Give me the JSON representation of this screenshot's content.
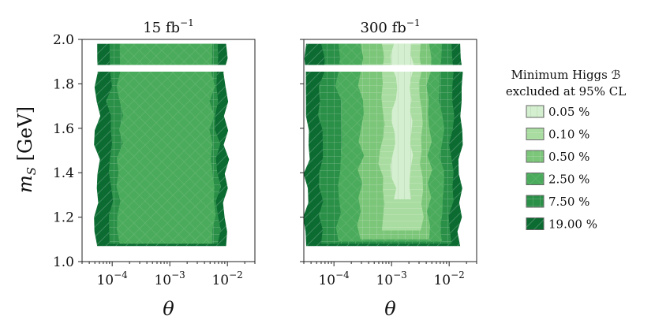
{
  "chart_data": {
    "type": "contour",
    "ylabel": "m_S [GeV]",
    "xlabel": "θ",
    "x_scale": "log",
    "xlim": [
      3e-05,
      0.03
    ],
    "ylim": [
      1.0,
      2.0
    ],
    "x_ticks": [
      {
        "value": 0.0001,
        "base": "10",
        "exp": "−4"
      },
      {
        "value": 0.001,
        "base": "10",
        "exp": "−3"
      },
      {
        "value": 0.01,
        "base": "10",
        "exp": "−2"
      }
    ],
    "y_ticks": [
      "1.0",
      "1.2",
      "1.4",
      "1.6",
      "1.8",
      "2.0"
    ],
    "y_tick_values": [
      1.0,
      1.2,
      1.4,
      1.6,
      1.8,
      2.0
    ],
    "gap_y": [
      1.855,
      1.885
    ],
    "panels": [
      {
        "title_base": "15 fb",
        "title_exp": "−1",
        "regions": [
          {
            "level": "19.00 %",
            "x_left": 5.5e-05,
            "x_right": 0.0095,
            "y_bottom": 1.07,
            "y_top": 1.98
          },
          {
            "level": "7.50 %",
            "x_left": 9e-05,
            "x_right": 0.0068,
            "y_bottom": 1.08,
            "y_top": 1.98
          },
          {
            "level": "2.50 %",
            "x_left": 0.000135,
            "x_right": 0.0055,
            "y_bottom": 1.08,
            "y_top": 1.98
          }
        ]
      },
      {
        "title_base": "300 fb",
        "title_exp": "−1",
        "regions": [
          {
            "level": "19.00 %",
            "x_left": 3.3e-05,
            "x_right": 0.0155,
            "y_bottom": 1.07,
            "y_top": 1.98
          },
          {
            "level": "7.50 %",
            "x_left": 6e-05,
            "x_right": 0.011,
            "y_bottom": 1.08,
            "y_top": 1.98
          },
          {
            "level": "2.50 %",
            "x_left": 0.00012,
            "x_right": 0.0075,
            "y_bottom": 1.09,
            "y_top": 1.98
          },
          {
            "level": "0.50 %",
            "x_left": 0.00029,
            "x_right": 0.0045,
            "y_bottom": 1.1,
            "y_top": 1.98
          },
          {
            "level": "0.10 %",
            "x_left": 0.00068,
            "x_right": 0.0032,
            "y_bottom": 1.14,
            "y_top": 1.98
          },
          {
            "level": "0.05 %",
            "x_left": 0.0011,
            "x_right": 0.0022,
            "y_bottom": 1.28,
            "y_top": 1.98
          }
        ]
      }
    ],
    "legend": {
      "title_line1": "Minimum Higgs ℬ",
      "title_line2": "excluded at 95% CL",
      "placement": "right",
      "entries": [
        {
          "label": "0.05 %",
          "color": "#d4efcf"
        },
        {
          "label": "0.10 %",
          "color": "#a9dca0"
        },
        {
          "label": "0.50 %",
          "color": "#7cc67a"
        },
        {
          "label": "2.50 %",
          "color": "#4bab5c"
        },
        {
          "label": "7.50 %",
          "color": "#2a8f47"
        },
        {
          "label": "19.00 %",
          "color": "#0b6b31"
        }
      ]
    }
  }
}
